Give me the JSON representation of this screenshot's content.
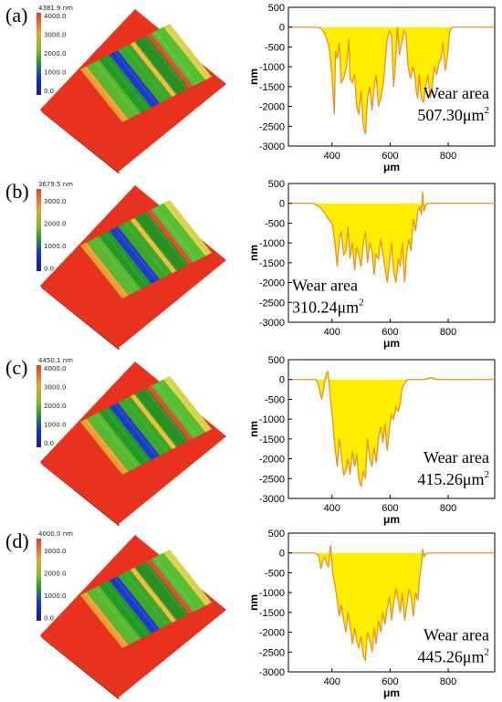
{
  "panels": [
    {
      "letter": "(a)",
      "colorbar": {
        "top": "4381.9 nm",
        "ticks": [
          "4000.0",
          "3000.0",
          "2000.0",
          "1000.0",
          "0.0"
        ]
      },
      "annotation": {
        "line1": "Wear area",
        "value": "507.30",
        "unit": "μm",
        "sup": "2",
        "anchor": "right"
      }
    },
    {
      "letter": "(b)",
      "colorbar": {
        "top": "3679.5 nm",
        "ticks": [
          "3000.0",
          "2000.0",
          "1000.0",
          "0.0"
        ]
      },
      "annotation": {
        "line1": "Wear area",
        "value": "310.24",
        "unit": "μm",
        "sup": "2",
        "anchor": "left"
      }
    },
    {
      "letter": "(c)",
      "colorbar": {
        "top": "4450.1 nm",
        "ticks": [
          "4000.0",
          "3000.0",
          "2000.0",
          "1000.0",
          "0.0"
        ]
      },
      "annotation": {
        "line1": "Wear area",
        "value": "415.26",
        "unit": "μm",
        "sup": "2",
        "anchor": "right"
      }
    },
    {
      "letter": "(d)",
      "colorbar": {
        "top": "4000.0 nm",
        "ticks": [
          "3000.0",
          "2000.0",
          "1000.0",
          "0.0"
        ]
      },
      "annotation": {
        "line1": "Wear area",
        "value": "445.26",
        "unit": "μm",
        "sup": "2",
        "anchor": "right"
      }
    }
  ],
  "colors": {
    "fill": "#ffee00",
    "line": "#f0901c",
    "surface": "#e8321e"
  },
  "chart_data": [
    {
      "type": "area",
      "xlabel": "μm",
      "ylabel": "nm",
      "xlim": [
        250,
        960
      ],
      "ylim": [
        -3000,
        500
      ],
      "xticks": [
        400,
        600,
        800
      ],
      "yticks": [
        500,
        0,
        -500,
        -1000,
        -1500,
        -2000,
        -2500,
        -3000
      ],
      "series": [
        {
          "x": [
            250,
            340,
            360,
            375,
            390,
            400,
            408,
            412,
            418,
            425,
            432,
            440,
            450,
            458,
            462,
            470,
            478,
            485,
            492,
            500,
            508,
            515,
            522,
            530,
            538,
            545,
            552,
            560,
            568,
            575,
            582,
            590,
            598,
            605,
            612,
            618,
            625,
            632,
            640,
            648,
            655,
            662,
            670,
            678,
            685,
            690,
            695,
            700,
            708,
            715,
            722,
            730,
            738,
            745,
            752,
            760,
            768,
            775,
            782,
            790,
            798,
            805,
            815,
            830,
            850,
            960
          ],
          "y": [
            0,
            0,
            -20,
            -150,
            -500,
            -1200,
            -2200,
            -600,
            -800,
            -400,
            -1400,
            -1300,
            -1000,
            -300,
            -1300,
            -1400,
            -1200,
            -2000,
            -2200,
            -1600,
            -2500,
            -2700,
            -1800,
            -1500,
            -2100,
            -1500,
            -1200,
            -2000,
            -1800,
            -1500,
            -1000,
            -300,
            -100,
            -200,
            -1500,
            -1000,
            0,
            -700,
            -400,
            -100,
            -200,
            -1000,
            -1300,
            -1000,
            -1200,
            -1600,
            -1800,
            -1200,
            -1800,
            -1900,
            -1500,
            -1200,
            -1800,
            -1500,
            -1000,
            -1200,
            -900,
            -800,
            -400,
            -1100,
            -700,
            -100,
            0,
            0,
            0,
            0
          ]
        }
      ],
      "annotation": {
        "text": "Wear area 507.30μm2",
        "x": 880,
        "y": -1800
      }
    },
    {
      "type": "area",
      "xlabel": "μm",
      "ylabel": "nm",
      "xlim": [
        250,
        960
      ],
      "ylim": [
        -3000,
        500
      ],
      "xticks": [
        400,
        600,
        800
      ],
      "yticks": [
        500,
        0,
        -500,
        -1000,
        -1500,
        -2000,
        -2500,
        -3000
      ],
      "series": [
        {
          "x": [
            250,
            335,
            350,
            362,
            375,
            388,
            400,
            410,
            418,
            425,
            432,
            440,
            448,
            455,
            462,
            470,
            478,
            485,
            492,
            500,
            508,
            515,
            522,
            530,
            538,
            545,
            552,
            560,
            568,
            575,
            582,
            590,
            598,
            605,
            612,
            620,
            628,
            635,
            642,
            650,
            658,
            665,
            672,
            680,
            688,
            695,
            702,
            708,
            712,
            716,
            722,
            730,
            745,
            760,
            960
          ],
          "y": [
            0,
            0,
            -60,
            -120,
            -250,
            -400,
            -500,
            -1000,
            -1600,
            -900,
            -700,
            -1300,
            -1200,
            -600,
            -1400,
            -1000,
            -1700,
            -1100,
            -1300,
            -1600,
            -1000,
            -700,
            -1500,
            -1000,
            -1200,
            -1800,
            -1300,
            -1400,
            -900,
            -1300,
            -1600,
            -2000,
            -1500,
            -1000,
            -1700,
            -2000,
            -1400,
            -1600,
            -1000,
            -2000,
            -1200,
            -900,
            -1200,
            -400,
            -700,
            -200,
            -100,
            -300,
            300,
            -200,
            -50,
            0,
            0,
            0,
            0
          ]
        }
      ],
      "annotation": {
        "text": "Wear area 310.24μm2",
        "x": 340,
        "y": -2200
      }
    },
    {
      "type": "area",
      "xlabel": "μm",
      "ylabel": "nm",
      "xlim": [
        250,
        960
      ],
      "ylim": [
        -3000,
        500
      ],
      "xticks": [
        400,
        600,
        800
      ],
      "yticks": [
        500,
        0,
        -500,
        -1000,
        -1500,
        -2000,
        -2500,
        -3000
      ],
      "series": [
        {
          "x": [
            250,
            345,
            352,
            358,
            365,
            372,
            380,
            386,
            390,
            395,
            402,
            410,
            418,
            425,
            432,
            440,
            448,
            455,
            462,
            470,
            478,
            485,
            492,
            500,
            508,
            515,
            522,
            530,
            538,
            545,
            552,
            560,
            568,
            575,
            582,
            590,
            598,
            605,
            612,
            620,
            628,
            635,
            642,
            650,
            655,
            660,
            665,
            720,
            740,
            760,
            960
          ],
          "y": [
            0,
            0,
            -100,
            -300,
            -500,
            -200,
            150,
            200,
            -100,
            -500,
            -1000,
            -1700,
            -2200,
            -1500,
            -1900,
            -2400,
            -2300,
            -2000,
            -2400,
            -1800,
            -2200,
            -1900,
            -2500,
            -2700,
            -2300,
            -2500,
            -1500,
            -2000,
            -2200,
            -1700,
            -2100,
            -1500,
            -1200,
            -1600,
            -1100,
            -1800,
            -1200,
            -900,
            -1000,
            -700,
            -800,
            -600,
            -200,
            -100,
            -50,
            0,
            0,
            0,
            50,
            0,
            0
          ]
        }
      ],
      "annotation": {
        "text": "Wear area 415.26μm2",
        "x": 880,
        "y": -2100
      }
    },
    {
      "type": "area",
      "xlabel": "μm",
      "ylabel": "nm",
      "xlim": [
        250,
        960
      ],
      "ylim": [
        -3000,
        500
      ],
      "xticks": [
        400,
        600,
        800
      ],
      "yticks": [
        500,
        0,
        -500,
        -1000,
        -1500,
        -2000,
        -2500,
        -3000
      ],
      "series": [
        {
          "x": [
            250,
            340,
            348,
            355,
            362,
            368,
            375,
            382,
            388,
            395,
            402,
            410,
            418,
            425,
            432,
            440,
            448,
            455,
            462,
            470,
            478,
            485,
            492,
            500,
            508,
            515,
            522,
            530,
            538,
            545,
            552,
            560,
            568,
            575,
            582,
            590,
            598,
            605,
            612,
            620,
            628,
            635,
            642,
            650,
            658,
            665,
            672,
            680,
            688,
            695,
            702,
            708,
            712,
            716,
            722,
            730,
            745,
            760,
            960
          ],
          "y": [
            0,
            0,
            -30,
            -80,
            -400,
            -200,
            -100,
            -300,
            -350,
            200,
            -500,
            -800,
            -1200,
            -1600,
            -1300,
            -1700,
            -2000,
            -1500,
            -1800,
            -2300,
            -1900,
            -2200,
            -2400,
            -2100,
            -2600,
            -2700,
            -2000,
            -2200,
            -2500,
            -1900,
            -2300,
            -1700,
            -2000,
            -1500,
            -1800,
            -1400,
            -1100,
            -1700,
            -1300,
            -900,
            -1200,
            -1500,
            -1000,
            -1700,
            -1300,
            -900,
            -1100,
            -1600,
            -1000,
            -1200,
            -600,
            -300,
            100,
            -100,
            -30,
            0,
            0,
            0,
            0
          ]
        }
      ],
      "annotation": {
        "text": "Wear area 445.26μm2",
        "x": 880,
        "y": -2200
      }
    }
  ]
}
